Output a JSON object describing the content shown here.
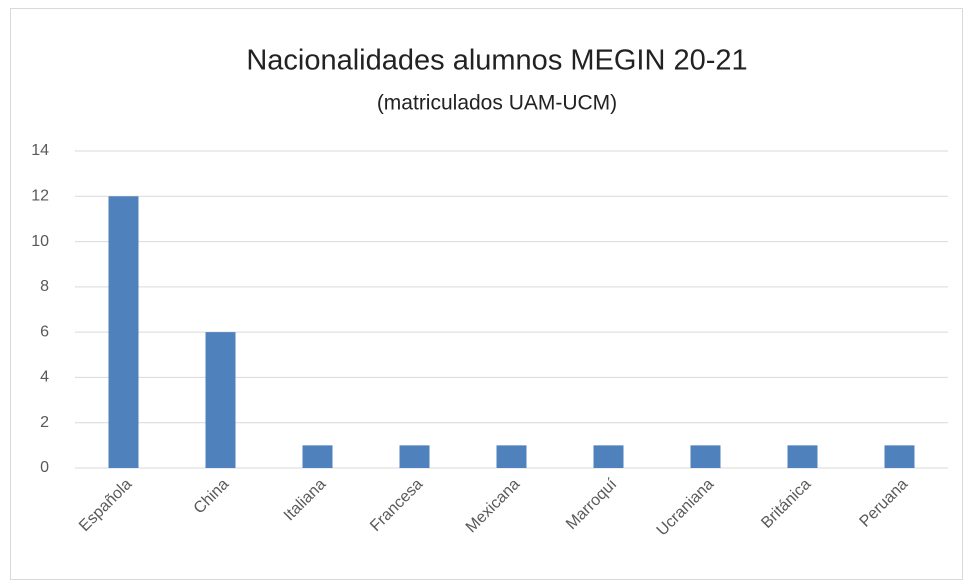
{
  "chart_data": {
    "type": "bar",
    "title": "Nacionalidades alumnos MEGIN 20-21",
    "subtitle": "(matriculados UAM-UCM)",
    "categories": [
      "Española",
      "China",
      "Italiana",
      "Francesa",
      "Mexicana",
      "Marroquí",
      "Ucraniana",
      "Británica",
      "Peruana"
    ],
    "values": [
      12,
      6,
      1,
      1,
      1,
      1,
      1,
      1,
      1
    ],
    "color": "#4f81bd",
    "ylim": [
      0,
      14
    ],
    "yticks": [
      0,
      2,
      4,
      6,
      8,
      10,
      12,
      14
    ],
    "grid": true
  }
}
